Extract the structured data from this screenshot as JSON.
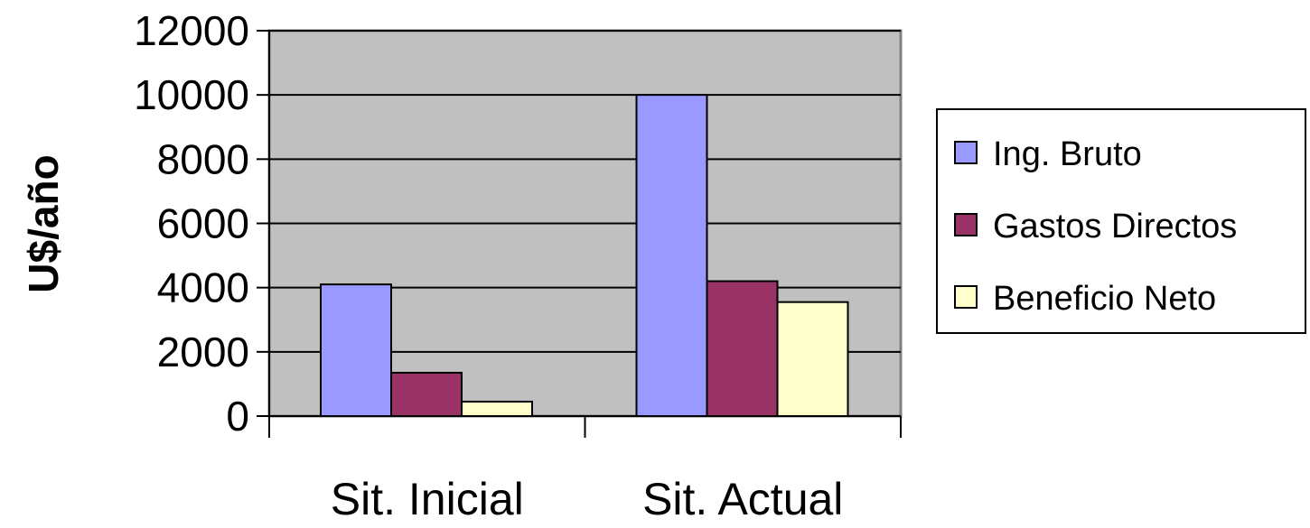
{
  "chart_data": {
    "type": "bar",
    "ylabel": "U$/año",
    "categories": [
      "Sit. Inicial",
      "Sit. Actual"
    ],
    "series": [
      {
        "name": "Ing. Bruto",
        "color": "#9999ff",
        "values": [
          4100,
          10000
        ]
      },
      {
        "name": "Gastos Directos",
        "color": "#993366",
        "values": [
          1350,
          4200
        ]
      },
      {
        "name": "Beneficio Neto",
        "color": "#ffffcc",
        "values": [
          450,
          3550
        ]
      }
    ],
    "ylim": [
      0,
      12000
    ],
    "yticks": [
      0,
      2000,
      4000,
      6000,
      8000,
      10000,
      12000
    ],
    "grid": true,
    "plot_background": "#c0c0c0",
    "legend_position": "right"
  }
}
